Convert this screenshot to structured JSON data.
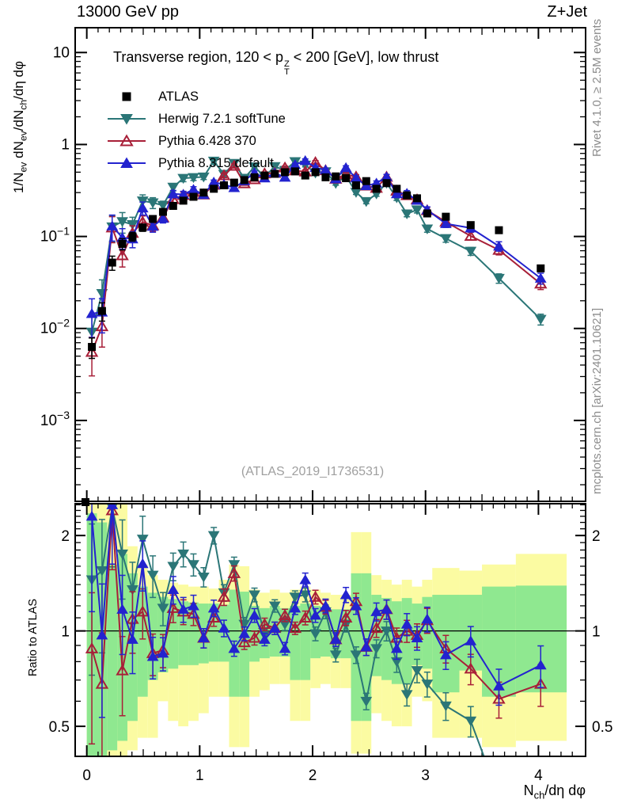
{
  "header": {
    "left": "13000 GeV pp",
    "right": "Z+Jet"
  },
  "panel_title_parts": [
    {
      "t": "Transverse region, 120 < p"
    },
    {
      "stack": [
        "Z",
        "T"
      ]
    },
    {
      "t": " < 200 [GeV], low thrust"
    }
  ],
  "ylabel_parts": [
    {
      "t": "1/N"
    },
    {
      "t": "ev",
      "sub": true
    },
    {
      "t": " dN"
    },
    {
      "t": "ev",
      "sub": true
    },
    {
      "t": "/dN"
    },
    {
      "t": "ch",
      "sub": true
    },
    {
      "t": "/dη dφ"
    }
  ],
  "xlabel_parts": [
    {
      "t": "N"
    },
    {
      "t": "ch",
      "sub": true
    },
    {
      "t": "/dη dφ"
    }
  ],
  "ratio_ylabel": "Ratio to ATLAS",
  "credits": {
    "right_top": "Rivet 4.1.0, ≥ 2.5M events",
    "right_bottom": "mcplots.cern.ch [arXiv:2401.10621]"
  },
  "watermark": "(ATLAS_2019_I1736531)",
  "colors": {
    "atlas": "#000000",
    "herwig": "#2b7677",
    "pythia6": "#a81f38",
    "pythia8": "#2323cf",
    "band_outer": "#fbfba2",
    "band_inner": "#8fe890",
    "credits_text": "#8c8c8c",
    "watermark_text": "#9f9f9f"
  },
  "legend": [
    {
      "label": "ATLAS",
      "marker": "square",
      "color": "#000000",
      "line": false,
      "open": false
    },
    {
      "label": "Herwig 7.2.1 softTune",
      "marker": "tridown",
      "color": "#2b7677",
      "line": true,
      "open": false
    },
    {
      "label": "Pythia 6.428 370",
      "marker": "triup",
      "color": "#a81f38",
      "line": true,
      "open": true
    },
    {
      "label": "Pythia 8.315 default",
      "marker": "triup",
      "color": "#2323cf",
      "line": true,
      "open": false
    }
  ],
  "chart_data": {
    "type": "line",
    "title": "Transverse region, 120 < pTZ < 200 [GeV], low thrust",
    "xlabel": "Nch/dη dφ",
    "ylabel": "1/Nev dNev/dNch/dη dφ",
    "ratio_label": "Ratio to ATLAS",
    "xlim": [
      -0.1027,
      4.4177
    ],
    "main_ylim": [
      0.000132,
      18.6
    ],
    "ratio_ylim": [
      0.402,
      2.52
    ],
    "x_ticks": [
      0,
      1,
      2,
      3,
      4
    ],
    "y_ticks_main": [
      {
        "v": 10,
        "base": "10",
        "exp": ""
      },
      {
        "v": 1,
        "base": "1",
        "exp": ""
      },
      {
        "v": 0.1,
        "base": "10",
        "exp": "−1"
      },
      {
        "v": 0.01,
        "base": "10",
        "exp": "−2"
      },
      {
        "v": 0.001,
        "base": "10",
        "exp": "−3"
      }
    ],
    "ratio_ticks": [
      {
        "v": 2,
        "label": "2"
      },
      {
        "v": 1,
        "label": "1"
      },
      {
        "v": 0.5,
        "label": "0.5"
      }
    ],
    "bins": {
      "width": 0.09,
      "n_uniform": 34,
      "tail_edges": [
        3.3,
        3.5,
        3.8,
        4.25
      ]
    },
    "x": [
      0.045,
      0.135,
      0.225,
      0.315,
      0.405,
      0.495,
      0.585,
      0.675,
      0.765,
      0.855,
      0.945,
      1.035,
      1.125,
      1.215,
      1.305,
      1.395,
      1.485,
      1.575,
      1.665,
      1.755,
      1.845,
      1.935,
      2.025,
      2.115,
      2.205,
      2.295,
      2.385,
      2.475,
      2.565,
      2.655,
      2.745,
      2.835,
      2.925,
      3.015,
      3.18,
      3.4,
      3.65,
      4.02
    ],
    "series": [
      {
        "name": "ATLAS",
        "role": "data",
        "values": [
          0.0063,
          0.0155,
          0.052,
          0.083,
          0.1,
          0.125,
          0.155,
          0.185,
          0.215,
          0.245,
          0.27,
          0.3,
          0.33,
          0.36,
          0.385,
          0.41,
          0.44,
          0.46,
          0.48,
          0.5,
          0.51,
          0.46,
          0.5,
          0.44,
          0.45,
          0.43,
          0.36,
          0.4,
          0.33,
          0.38,
          0.33,
          0.28,
          0.26,
          0.178,
          0.164,
          0.133,
          0.117,
          0.045
        ]
      },
      {
        "name": "Herwig 7.2.1 softTune",
        "role": "mc",
        "ratio_to_data": [
          1.45,
          1.55,
          2.45,
          1.75,
          1.35,
          1.95,
          1.5,
          1.18,
          1.6,
          1.75,
          1.62,
          1.48,
          2.0,
          1.32,
          1.62,
          1.05,
          1.3,
          0.97,
          1.2,
          1.05,
          1.28,
          1.3,
          0.98,
          1.15,
          0.84,
          1.05,
          0.84,
          0.6,
          0.88,
          1.0,
          0.8,
          0.63,
          0.75,
          0.68,
          0.58,
          0.52,
          0.3,
          0.28
        ]
      },
      {
        "name": "Pythia 6.428 370",
        "role": "mc",
        "ratio_to_data": [
          0.88,
          0.68,
          2.4,
          0.75,
          1.09,
          1.15,
          0.85,
          0.87,
          1.18,
          1.15,
          1.13,
          0.95,
          1.1,
          1.28,
          1.52,
          0.92,
          0.95,
          1.05,
          1.02,
          1.12,
          1.02,
          1.1,
          1.28,
          1.19,
          0.94,
          1.1,
          1.24,
          0.89,
          1.02,
          1.17,
          0.95,
          1.0,
          0.97,
          1.08,
          0.88,
          0.76,
          0.61,
          0.68
        ]
      },
      {
        "name": "Pythia 8.315 default",
        "role": "mc",
        "ratio_to_data": [
          2.3,
          0.97,
          2.5,
          1.17,
          0.94,
          1.63,
          0.83,
          0.85,
          1.35,
          1.17,
          1.2,
          0.95,
          1.18,
          1.02,
          0.88,
          0.98,
          1.12,
          0.94,
          1.02,
          0.88,
          1.18,
          1.45,
          1.12,
          1.2,
          0.94,
          1.3,
          1.2,
          0.89,
          1.15,
          1.17,
          0.88,
          1.05,
          0.95,
          1.09,
          0.84,
          0.93,
          0.67,
          0.78
        ]
      }
    ],
    "rel_err": [
      0.5,
      0.45,
      0.35,
      0.28,
      0.22,
      0.18,
      0.15,
      0.12,
      0.1,
      0.09,
      0.08,
      0.07,
      0.06,
      0.06,
      0.055,
      0.05,
      0.05,
      0.045,
      0.045,
      0.045,
      0.045,
      0.05,
      0.05,
      0.05,
      0.05,
      0.055,
      0.06,
      0.06,
      0.065,
      0.07,
      0.075,
      0.08,
      0.085,
      0.09,
      0.1,
      0.11,
      0.13,
      0.15
    ],
    "bands": {
      "yellow_lo": [
        0.4,
        0.4,
        0.4,
        0.4,
        0.42,
        0.46,
        0.46,
        0.6,
        0.52,
        0.5,
        0.52,
        0.55,
        0.62,
        0.62,
        0.43,
        0.43,
        0.62,
        0.65,
        0.68,
        0.68,
        0.52,
        0.52,
        0.66,
        0.68,
        0.66,
        0.66,
        0.41,
        0.41,
        0.55,
        0.52,
        0.5,
        0.5,
        0.62,
        0.6,
        0.46,
        0.46,
        0.43,
        0.45
      ],
      "yellow_hi": [
        2.55,
        2.55,
        2.55,
        2.55,
        1.85,
        1.62,
        1.5,
        1.45,
        1.42,
        1.4,
        1.38,
        1.38,
        1.36,
        1.45,
        1.62,
        1.6,
        1.35,
        1.32,
        1.35,
        1.32,
        1.35,
        1.38,
        1.35,
        1.32,
        1.3,
        1.3,
        2.05,
        2.05,
        1.5,
        1.45,
        1.4,
        1.45,
        1.38,
        1.45,
        1.58,
        1.55,
        1.62,
        1.75
      ],
      "green_lo": [
        0.4,
        0.4,
        0.42,
        0.45,
        0.52,
        0.62,
        0.7,
        0.74,
        0.76,
        0.78,
        0.78,
        0.79,
        0.8,
        0.8,
        0.62,
        0.62,
        0.8,
        0.82,
        0.83,
        0.83,
        0.7,
        0.7,
        0.82,
        0.83,
        0.82,
        0.82,
        0.52,
        0.52,
        0.72,
        0.7,
        0.68,
        0.68,
        0.78,
        0.76,
        0.64,
        0.75,
        0.62,
        0.64
      ],
      "green_hi": [
        2.35,
        2.2,
        1.62,
        1.75,
        1.52,
        1.38,
        1.32,
        1.28,
        1.26,
        1.24,
        1.23,
        1.22,
        1.22,
        1.21,
        1.35,
        1.33,
        1.2,
        1.18,
        1.2,
        1.18,
        1.2,
        1.22,
        1.2,
        1.18,
        1.17,
        1.17,
        1.52,
        1.52,
        1.3,
        1.27,
        1.24,
        1.27,
        1.22,
        1.28,
        1.3,
        1.3,
        1.38,
        1.39
      ]
    }
  }
}
